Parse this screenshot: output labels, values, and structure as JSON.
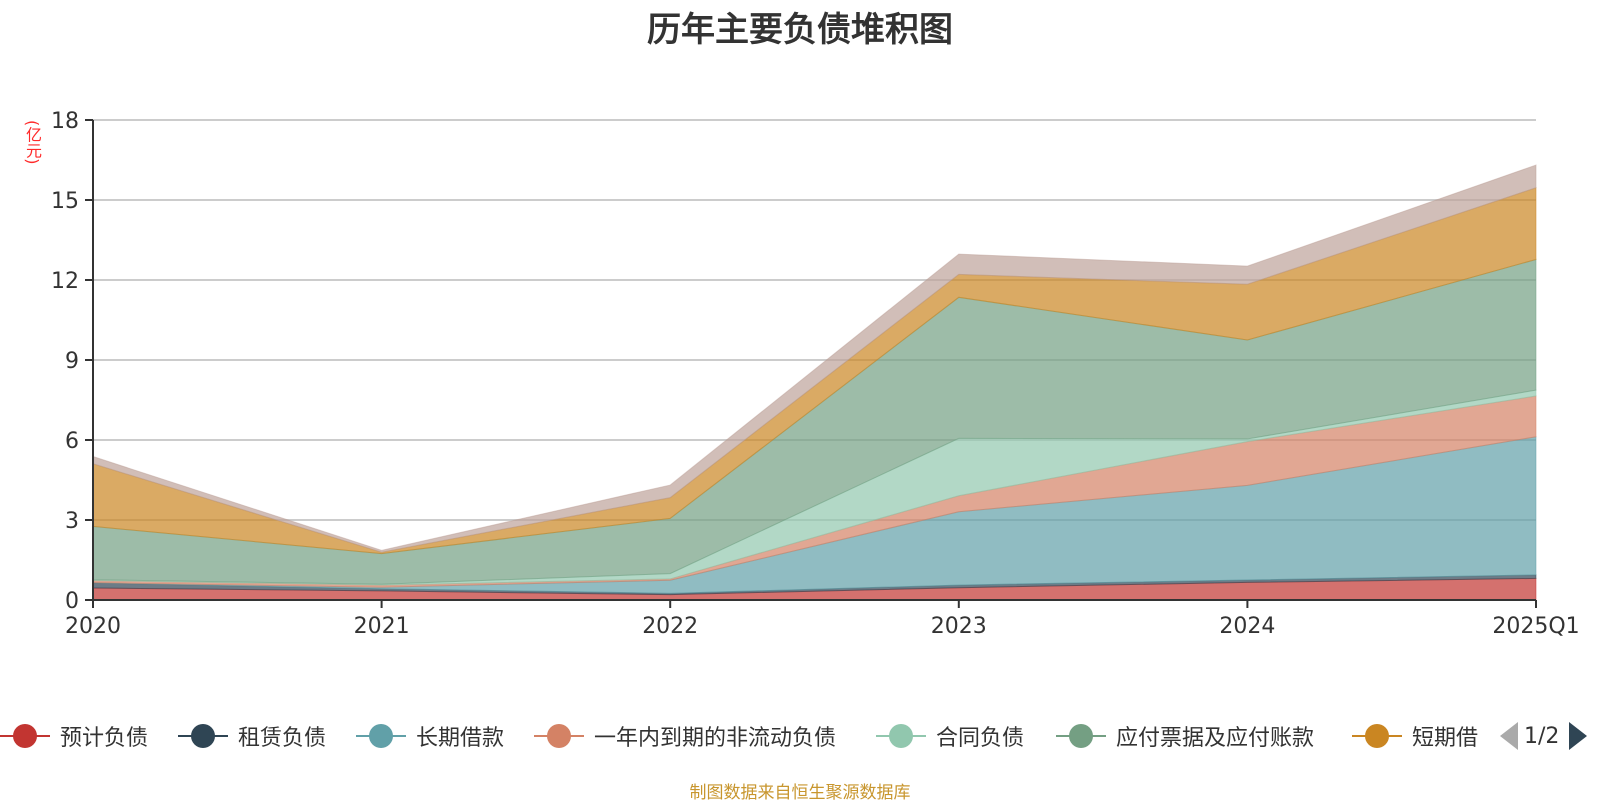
{
  "chart_data": {
    "type": "area",
    "stacked": true,
    "title": "历年主要负债堆积图",
    "ylabel": "(亿元)",
    "xlabel": "",
    "ylim": [
      0,
      18
    ],
    "yticks": [
      "0",
      "3",
      "6",
      "9",
      "12",
      "15",
      "18"
    ],
    "ytick_values": [
      0,
      3,
      6,
      9,
      12,
      15,
      18
    ],
    "categories": [
      "2020",
      "2021",
      "2022",
      "2023",
      "2024",
      "2025Q1"
    ],
    "grid": true,
    "legend_position": "bottom",
    "series": [
      {
        "name": "预计负债",
        "color": "#c23531",
        "values": [
          0.45,
          0.34,
          0.2,
          0.46,
          0.66,
          0.81
        ]
      },
      {
        "name": "租赁负债",
        "color": "#2f4554",
        "values": [
          0.19,
          0.08,
          0.05,
          0.1,
          0.09,
          0.13
        ]
      },
      {
        "name": "长期借款",
        "color": "#61a0a8",
        "values": [
          0.01,
          0.06,
          0.49,
          2.75,
          3.55,
          5.18
        ]
      },
      {
        "name": "一年内到期的非流动负债",
        "color": "#d48265",
        "values": [
          0.08,
          0.08,
          0.05,
          0.6,
          1.64,
          1.53
        ]
      },
      {
        "name": "合同负债",
        "color": "#91c7ae",
        "values": [
          0.03,
          0.03,
          0.2,
          2.15,
          0.1,
          0.22
        ]
      },
      {
        "name": "应付票据及应付账款",
        "color": "#749f83",
        "values": [
          2.0,
          1.15,
          2.07,
          5.29,
          3.71,
          4.9
        ]
      },
      {
        "name": "短期借",
        "color": "#ca8622",
        "values": [
          2.35,
          0.05,
          0.78,
          0.86,
          2.09,
          2.69
        ]
      },
      {
        "color": "#bda29a",
        "values": [
          0.27,
          0.07,
          0.47,
          0.76,
          0.68,
          0.85
        ]
      }
    ]
  },
  "legend": {
    "page_indicator": "1/2"
  },
  "footer": {
    "source": "制图数据来自恒生聚源数据库"
  }
}
